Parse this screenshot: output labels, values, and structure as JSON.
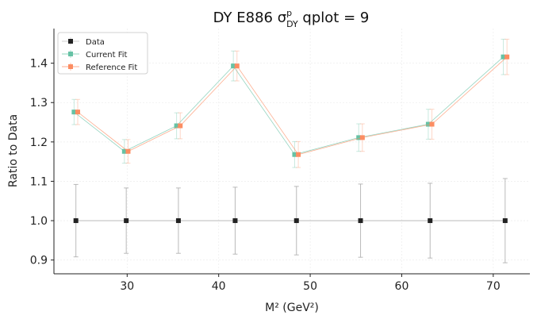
{
  "chart_data": {
    "type": "scatter",
    "title": "DY E886 σ^p_DY qplot = 9",
    "title_parts": {
      "prefix": "DY E886 σ",
      "sup": "p",
      "sub": "DY",
      "suffix": " qplot = 9"
    },
    "xlabel": "M² (GeV²)",
    "ylabel": "Ratio to Data",
    "xlim": [
      22,
      74
    ],
    "ylim": [
      0.865,
      1.488
    ],
    "xticks": [
      30,
      40,
      50,
      60,
      70
    ],
    "yticks": [
      0.9,
      1.0,
      1.1,
      1.2,
      1.3,
      1.4
    ],
    "grid": true,
    "legend_position": "top-left",
    "x": [
      24.4,
      29.9,
      35.6,
      41.8,
      48.5,
      55.5,
      63.1,
      71.3
    ],
    "series": [
      {
        "name": "Data",
        "color": "#222222",
        "line_color": "#bbbbbb",
        "marker": "square",
        "x_offset": 0,
        "values": [
          1.0,
          1.0,
          1.0,
          1.0,
          1.0,
          1.0,
          1.0,
          1.0
        ],
        "errors": [
          0.092,
          0.083,
          0.083,
          0.085,
          0.087,
          0.093,
          0.095,
          0.107
        ]
      },
      {
        "name": "Current Fit",
        "color": "#66c2a5",
        "line_color": "#66c2a5",
        "marker": "square",
        "x_offset": -0.2,
        "values": [
          1.276,
          1.176,
          1.241,
          1.393,
          1.168,
          1.211,
          1.245,
          1.416
        ],
        "errors": [
          0.032,
          0.03,
          0.033,
          0.038,
          0.033,
          0.035,
          0.038,
          0.045
        ]
      },
      {
        "name": "Reference Fit",
        "color": "#fc8d62",
        "line_color": "#fc8d62",
        "marker": "square",
        "x_offset": 0.2,
        "values": [
          1.276,
          1.176,
          1.241,
          1.393,
          1.168,
          1.211,
          1.245,
          1.416
        ],
        "errors": [
          0.032,
          0.03,
          0.033,
          0.038,
          0.033,
          0.035,
          0.038,
          0.045
        ]
      }
    ]
  }
}
